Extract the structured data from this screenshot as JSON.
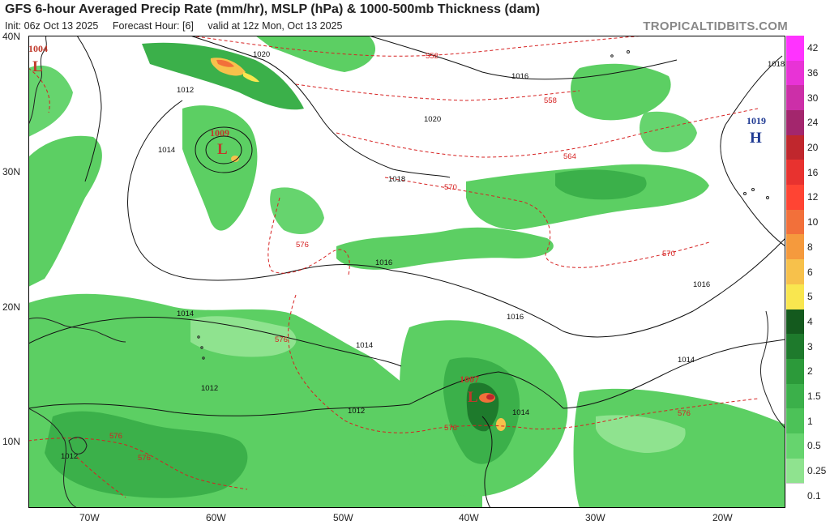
{
  "header": {
    "title": "GFS 6-hour Averaged Precip Rate (mm/hr), MSLP (hPa) & 1000-500mb Thickness (dam)",
    "init": "Init: 06z Oct 13 2025",
    "forecast_hour": "Forecast Hour: [6]",
    "valid": "valid at 12z Mon, Oct 13 2025",
    "brand": "TROPICALTIDBITS.COM"
  },
  "axes": {
    "lat_labels": [
      "40N",
      "30N",
      "20N",
      "10N"
    ],
    "lon_labels": [
      "70W",
      "60W",
      "50W",
      "40W",
      "30W",
      "20W"
    ]
  },
  "pressure_centers": [
    {
      "type": "L",
      "value": "1004",
      "color": "#c0392b"
    },
    {
      "type": "L",
      "value": "1009",
      "color": "#c0392b"
    },
    {
      "type": "L",
      "value": "1007",
      "color": "#c0392b"
    },
    {
      "type": "H",
      "value": "1019",
      "color": "#1f3a93"
    }
  ],
  "isobar_labels": [
    "1020",
    "1016",
    "1012",
    "1014",
    "1020",
    "1018",
    "1016",
    "1016",
    "1016",
    "1014",
    "1014",
    "1014",
    "1012",
    "1012",
    "1012",
    "1014",
    "1018"
  ],
  "thickness_labels": [
    "552",
    "558",
    "564",
    "570",
    "570",
    "576",
    "576",
    "576",
    "576",
    "576",
    "576"
  ],
  "legend": {
    "labels": [
      "42",
      "36",
      "30",
      "24",
      "20",
      "16",
      "12",
      "10",
      "8",
      "6",
      "5",
      "4",
      "3",
      "2",
      "1.5",
      "1",
      "0.5",
      "0.25",
      "0.1"
    ],
    "colors": [
      "#ff33ff",
      "#e833d6",
      "#cc2fa8",
      "#a3266d",
      "#c0272d",
      "#e8322f",
      "#ff4433",
      "#f2703a",
      "#f59a3d",
      "#f7c14b",
      "#f9e64f",
      "#145a1e",
      "#1e7a2c",
      "#2c9a3a",
      "#3bb04a",
      "#4cc258",
      "#66d46e",
      "#8fe38f",
      "#ffffff"
    ]
  }
}
